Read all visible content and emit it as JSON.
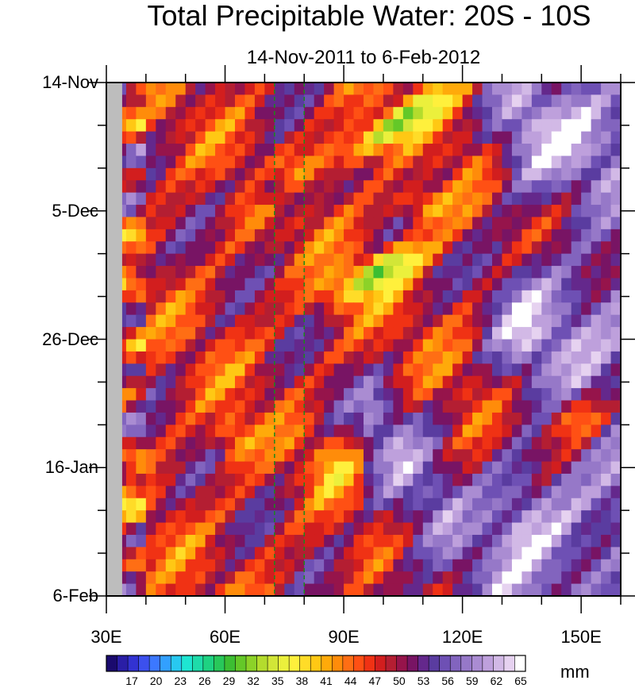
{
  "chart_data": {
    "type": "heatmap",
    "title": "Total Precipitable Water: 20S - 10S",
    "subtitle": "14-Nov-2011 to 6-Feb-2012",
    "x_ticks": [
      {
        "value": 30,
        "label": "30E"
      },
      {
        "value": 60,
        "label": "60E"
      },
      {
        "value": 90,
        "label": "90E"
      },
      {
        "value": 120,
        "label": "120E"
      },
      {
        "value": 150,
        "label": "150E"
      }
    ],
    "xlim": [
      30,
      160
    ],
    "y_ticks": [
      {
        "day": 0,
        "label": "14-Nov"
      },
      {
        "day": 21,
        "label": "5-Dec"
      },
      {
        "day": 42,
        "label": "26-Dec"
      },
      {
        "day": 63,
        "label": "16-Jan"
      },
      {
        "day": 84,
        "label": "6-Feb"
      }
    ],
    "ylim": [
      0,
      84
    ],
    "reference_lines_x": [
      72.5,
      80
    ],
    "colorbar": {
      "units": "mm",
      "labels": [
        17,
        20,
        23,
        26,
        29,
        32,
        35,
        38,
        41,
        44,
        47,
        50,
        53,
        56,
        59,
        62,
        65
      ],
      "colors": [
        "#1a0a6e",
        "#2a1ea6",
        "#3232d2",
        "#3c50ee",
        "#3c78ff",
        "#32a0ff",
        "#28c8f0",
        "#1ee6d2",
        "#1edcaa",
        "#1ed282",
        "#28c85a",
        "#3cbe32",
        "#64c828",
        "#8cd228",
        "#b4dc2d",
        "#d2e637",
        "#ebf03c",
        "#fff03c",
        "#ffdc28",
        "#ffc814",
        "#ffaa0a",
        "#ff8c0a",
        "#ff6e14",
        "#ff5014",
        "#f03214",
        "#d21e1e",
        "#b41e32",
        "#96144b",
        "#781464",
        "#64288c",
        "#5a3ca0",
        "#6e50b4",
        "#8264be",
        "#9678c8",
        "#aa8cd2",
        "#bea0dc",
        "#d2b9e6",
        "#e6d2f0",
        "#ffffff"
      ]
    }
  }
}
